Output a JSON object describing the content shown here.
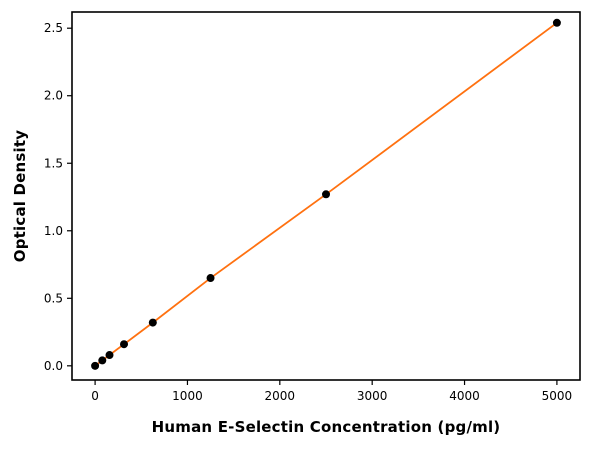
{
  "chart_data": {
    "type": "scatter",
    "title": "",
    "xlabel": "Human E-Selectin Concentration (pg/ml)",
    "ylabel": "Optical Density",
    "x": [
      0,
      78,
      156,
      313,
      625,
      1250,
      2500,
      5000
    ],
    "y": [
      0.0,
      0.04,
      0.08,
      0.16,
      0.32,
      0.65,
      1.27,
      2.54
    ],
    "xlim": [
      -250,
      5250
    ],
    "ylim": [
      -0.105,
      2.62
    ],
    "xticks": [
      0,
      1000,
      2000,
      3000,
      4000,
      5000
    ],
    "yticks": [
      0,
      0.5,
      1.0,
      1.5,
      2.0,
      2.5
    ],
    "grid": false,
    "legend": "none",
    "line_color": "#ff7110",
    "marker_color": "#000000",
    "axis_color": "#000000",
    "background_color": "#ffffff",
    "marker": "circle",
    "marker_radius": 4
  }
}
